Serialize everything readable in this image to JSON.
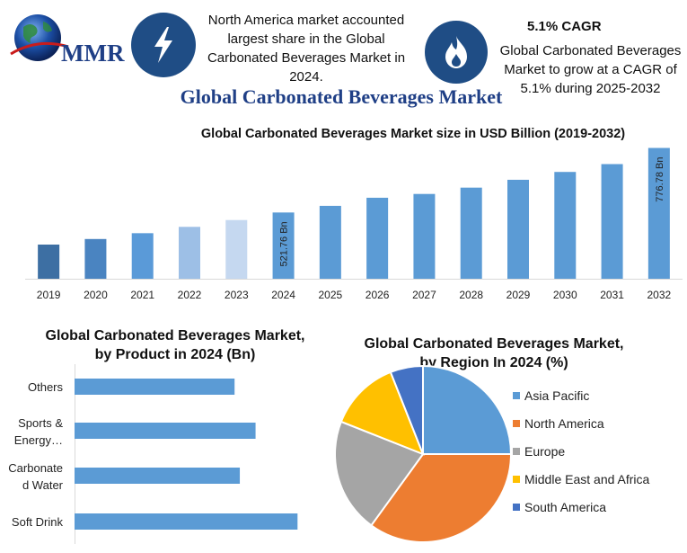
{
  "header": {
    "logo_text": "MMR",
    "fact_left": "North America market accounted largest share in the Global Carbonated Beverages Market in 2024.",
    "cagr_title": "5.1% CAGR",
    "fact_right": "Global Carbonated Beverages Market to grow at a CAGR of 5.1% during 2025-2032",
    "icons": [
      "globe-logo-icon",
      "lightning-icon",
      "flame-icon"
    ]
  },
  "main_title": "Global Carbonated Beverages Market",
  "chart_data": [
    {
      "type": "bar",
      "title": "Global Carbonated Beverages Market size in USD Billion (2019-2032)",
      "categories": [
        "2019",
        "2020",
        "2021",
        "2022",
        "2023",
        "2024",
        "2025",
        "2026",
        "2027",
        "2028",
        "2029",
        "2030",
        "2031",
        "2032"
      ],
      "values": [
        395,
        417,
        440,
        465,
        492,
        521.76,
        548,
        580,
        595,
        620,
        651,
        682,
        713,
        776.78
      ],
      "colors": [
        "#3d6fa3",
        "#4a84c1",
        "#5a9ad8",
        "#9dbfe6",
        "#c5d8f0",
        "#5b9bd5",
        "#5b9bd5",
        "#5b9bd5",
        "#5b9bd5",
        "#5b9bd5",
        "#5b9bd5",
        "#5b9bd5",
        "#5b9bd5",
        "#5b9bd5"
      ],
      "data_labels": [
        {
          "category": "2024",
          "text": "521.76 Bn"
        },
        {
          "category": "2032",
          "text": "776.78 Bn"
        }
      ],
      "ylim": [
        260,
        800
      ]
    },
    {
      "type": "bar",
      "orientation": "horizontal",
      "title": "Global Carbonated Beverages Market, by Product  in 2024 (Bn)",
      "categories": [
        "Others",
        "Sports & Energy…",
        "Carbonated Water",
        "Soft Drink"
      ],
      "category_lines": [
        [
          "Others"
        ],
        [
          "Sports &",
          "Energy…"
        ],
        [
          "Carbonate",
          "d Water"
        ],
        [
          "Soft Drink"
        ]
      ],
      "values": [
        122,
        138,
        126,
        170
      ],
      "color": "#5b9bd5",
      "xlim": [
        0,
        178
      ]
    },
    {
      "type": "pie",
      "title": "Global Carbonated Beverages Market, by Region In 2024 (%)",
      "categories": [
        "Asia Pacific",
        "North America",
        "Europe",
        "Middle East and Africa",
        "South America"
      ],
      "values": [
        25,
        35,
        21,
        13,
        6
      ],
      "colors": [
        "#5b9bd5",
        "#ed7d31",
        "#a5a5a5",
        "#ffc000",
        "#4472c4"
      ],
      "legend_position": "right"
    }
  ]
}
